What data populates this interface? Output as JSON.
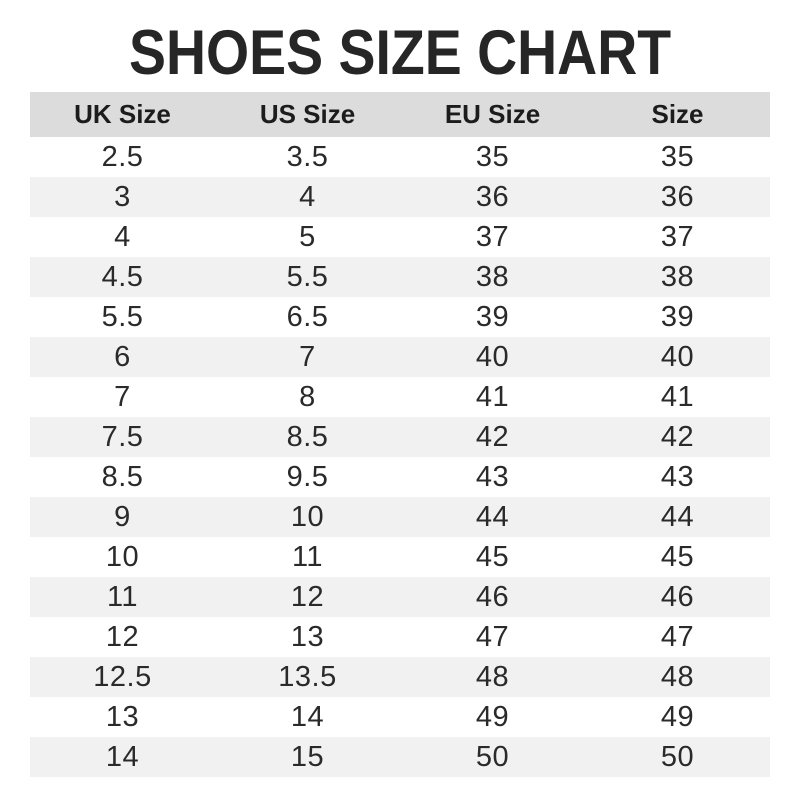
{
  "title": "SHOES SIZE CHART",
  "colors": {
    "header_bg": "#dcdcdc",
    "row_alt_bg": "#f1f1f1",
    "text": "#2a2a2a",
    "title_text": "#262626"
  },
  "chart_data": {
    "type": "table",
    "title": "SHOES SIZE CHART",
    "columns": [
      "UK Size",
      "US Size",
      "EU Size",
      "Size"
    ],
    "rows": [
      [
        "2.5",
        "3.5",
        "35",
        "35"
      ],
      [
        "3",
        "4",
        "36",
        "36"
      ],
      [
        "4",
        "5",
        "37",
        "37"
      ],
      [
        "4.5",
        "5.5",
        "38",
        "38"
      ],
      [
        "5.5",
        "6.5",
        "39",
        "39"
      ],
      [
        "6",
        "7",
        "40",
        "40"
      ],
      [
        "7",
        "8",
        "41",
        "41"
      ],
      [
        "7.5",
        "8.5",
        "42",
        "42"
      ],
      [
        "8.5",
        "9.5",
        "43",
        "43"
      ],
      [
        "9",
        "10",
        "44",
        "44"
      ],
      [
        "10",
        "11",
        "45",
        "45"
      ],
      [
        "11",
        "12",
        "46",
        "46"
      ],
      [
        "12",
        "13",
        "47",
        "47"
      ],
      [
        "12.5",
        "13.5",
        "48",
        "48"
      ],
      [
        "13",
        "14",
        "49",
        "49"
      ],
      [
        "14",
        "15",
        "50",
        "50"
      ]
    ],
    "layout": {
      "striped": true,
      "first_data_row_bg": "white",
      "header_style": "gray-filled-bold"
    }
  }
}
